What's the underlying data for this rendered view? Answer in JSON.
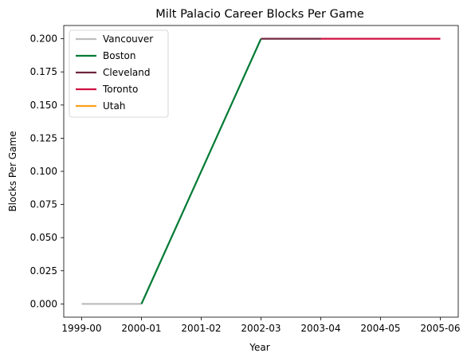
{
  "chart_data": {
    "type": "line",
    "title": "Milt Palacio Career Blocks Per Game",
    "xlabel": "Year",
    "ylabel": "Blocks Per Game",
    "categories": [
      "1999-00",
      "2000-01",
      "2001-02",
      "2002-03",
      "2003-04",
      "2004-05",
      "2005-06"
    ],
    "yticks": [
      "0.000",
      "0.025",
      "0.050",
      "0.075",
      "0.100",
      "0.125",
      "0.150",
      "0.175",
      "0.200"
    ],
    "ylim": [
      -0.01,
      0.21
    ],
    "grid": false,
    "legend_position": "top-left",
    "series": [
      {
        "name": "Vancouver",
        "color": "#BEBEBE",
        "points": [
          [
            "1999-00",
            0.0
          ],
          [
            "2000-01",
            0.0
          ]
        ]
      },
      {
        "name": "Boston",
        "color": "#007A33",
        "points": [
          [
            "2000-01",
            0.0
          ],
          [
            "2002-03",
            0.2
          ]
        ]
      },
      {
        "name": "Cleveland",
        "color": "#6F263D",
        "points": [
          [
            "2002-03",
            0.2
          ],
          [
            "2003-04",
            0.2
          ]
        ]
      },
      {
        "name": "Toronto",
        "color": "#CE1141",
        "points": [
          [
            "2003-04",
            0.2
          ],
          [
            "2005-06",
            0.2
          ]
        ]
      },
      {
        "name": "Utah",
        "color": "#F9A01B",
        "points": []
      }
    ]
  }
}
